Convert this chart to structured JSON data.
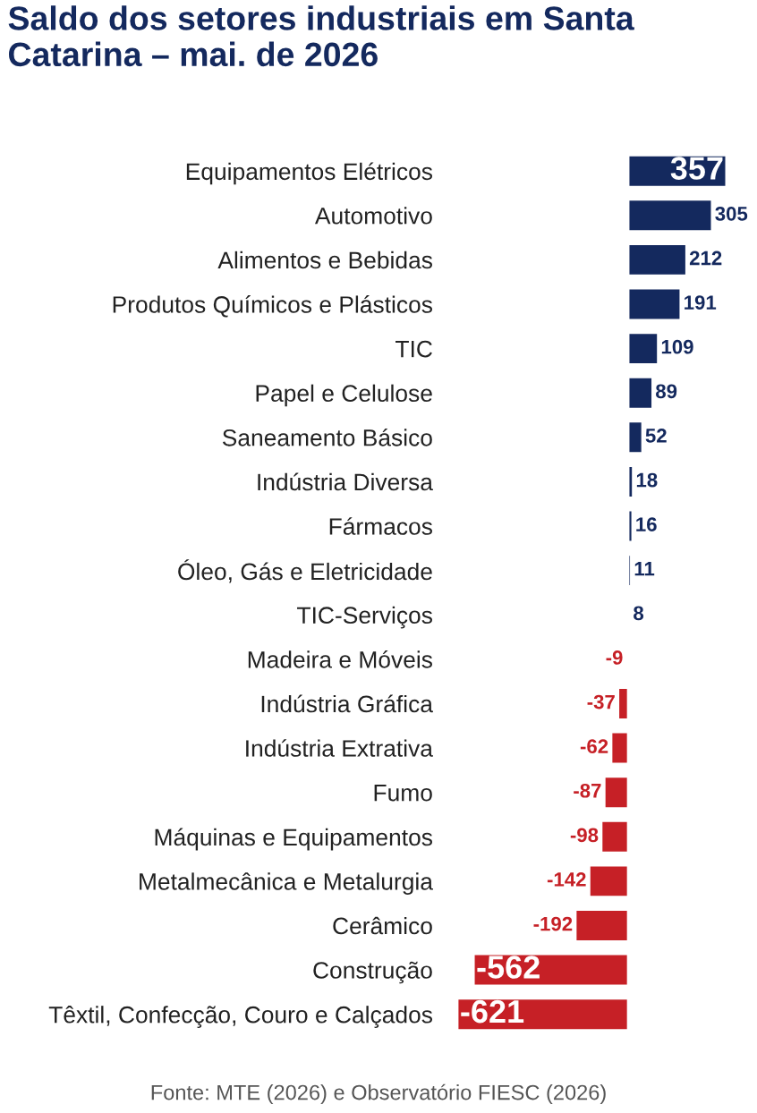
{
  "chart_data": {
    "type": "bar",
    "orientation": "horizontal",
    "title": "Saldo dos setores industriais em Santa Catarina – mai. de 2026",
    "categories": [
      "Equipamentos Elétricos",
      "Automotivo",
      "Alimentos e Bebidas",
      "Produtos Químicos e Plásticos",
      "TIC",
      "Papel e Celulose",
      "Saneamento Básico",
      "Indústria Diversa",
      "Fármacos",
      "Óleo, Gás e Eletricidade",
      "TIC-Serviços",
      "Madeira e Móveis",
      "Indústria Gráfica",
      "Indústria Extrativa",
      "Fumo",
      "Máquinas e Equipamentos",
      "Metalmecânica e Metalurgia",
      "Cerâmico",
      "Construção",
      "Têxtil, Confecção, Couro e Calçados"
    ],
    "values": [
      357,
      305,
      212,
      191,
      109,
      89,
      52,
      18,
      16,
      11,
      8,
      -9,
      -37,
      -62,
      -87,
      -98,
      -142,
      -192,
      -562,
      -621
    ],
    "colors": [
      "#14295e",
      "#14295e",
      "#14295e",
      "#14295e",
      "#14295e",
      "#14295e",
      "#14295e",
      "#14295e",
      "#14295e",
      "#14295e",
      "#14295e",
      "#c62026",
      "#c62026",
      "#c62026",
      "#c62026",
      "#c62026",
      "#c62026",
      "#c62026",
      "#c62026",
      "#c62026"
    ],
    "data_labels": true,
    "tick_labels": "y",
    "grid": false,
    "legend": false,
    "annotations": [
      "Fonte: MTE (2026) e Observatório FIESC (2026)"
    ]
  }
}
